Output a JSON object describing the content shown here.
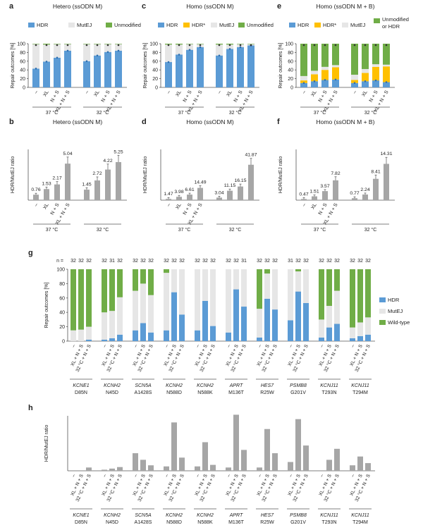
{
  "colors": {
    "hdr": "#5b9bd5",
    "hdrstar": "#ffc000",
    "mutej": "#e6e6e6",
    "unmod": "#70ad47",
    "ratio": "#a6a6a6",
    "text": "#222222",
    "axis": "#555555"
  },
  "legend_labels": {
    "hdr": "HDR",
    "hdrstar": "HDR*",
    "mutej": "MutEJ",
    "unmod": "Unmodified",
    "unmod_or_hdr_1": "Unmodified",
    "unmod_or_hdr_2": "or HDR",
    "wildtype": "Wild-type"
  },
  "conditions": [
    "–",
    "XL",
    "N + S",
    "XL + N + S"
  ],
  "temps": [
    "37 °C",
    "32 °C"
  ],
  "chart_data": [
    {
      "panel": "a",
      "type": "bar",
      "stacked": true,
      "title": "Hetero (ssODN M)",
      "ylabel": "Repair outcomes [%]",
      "ylim": [
        0,
        100
      ],
      "yticks": [
        0,
        20,
        40,
        60,
        80,
        100
      ],
      "series": [
        {
          "name": "HDR",
          "values": [
            43,
            59,
            68,
            84,
            60,
            73,
            81,
            84
          ]
        },
        {
          "name": "MutEJ",
          "values": [
            56,
            39,
            31,
            15,
            39,
            26,
            18,
            15
          ]
        },
        {
          "name": "Unmodified",
          "values": [
            1,
            2,
            1,
            1,
            1,
            1,
            1,
            1
          ]
        }
      ]
    },
    {
      "panel": "c",
      "type": "bar",
      "stacked": true,
      "title": "Homo (ssODN M)",
      "ylabel": "Repair outcomes [%]",
      "ylim": [
        0,
        100
      ],
      "yticks": [
        0,
        20,
        40,
        60,
        80,
        100
      ],
      "series": [
        {
          "name": "HDR",
          "values": [
            58,
            75,
            86,
            92,
            73,
            88,
            92,
            96
          ]
        },
        {
          "name": "HDR*",
          "values": [
            0,
            0,
            0,
            0,
            0,
            0,
            0,
            0
          ]
        },
        {
          "name": "MutEJ",
          "values": [
            40,
            23,
            13,
            7,
            25,
            10,
            7,
            3
          ]
        },
        {
          "name": "Unmodified",
          "values": [
            2,
            2,
            1,
            1,
            2,
            2,
            1,
            1
          ]
        }
      ]
    },
    {
      "panel": "e",
      "type": "bar",
      "stacked": true,
      "title": "Homo (ssODN M + B)",
      "ylabel": "Repair outcomes [%]",
      "ylim": [
        0,
        100
      ],
      "yticks": [
        0,
        20,
        40,
        60,
        80,
        100
      ],
      "series": [
        {
          "name": "HDR",
          "values": [
            10,
            14,
            17,
            18,
            10,
            14,
            16,
            12
          ]
        },
        {
          "name": "HDR*",
          "values": [
            6,
            16,
            23,
            28,
            7,
            19,
            31,
            36
          ]
        },
        {
          "name": "MutEJ",
          "values": [
            10,
            8,
            7,
            5,
            12,
            9,
            6,
            4
          ]
        },
        {
          "name": "Unmodified or HDR",
          "values": [
            74,
            62,
            53,
            49,
            71,
            58,
            47,
            48
          ]
        }
      ]
    },
    {
      "panel": "b",
      "type": "bar",
      "title": "Hetero (ssODN M)",
      "ylabel": "HDR/MutEJ ratio",
      "ylim": [
        0,
        7
      ],
      "values": [
        0.76,
        1.53,
        2.17,
        5.04,
        1.45,
        2.72,
        4.22,
        5.25
      ],
      "labels": [
        "0.76",
        "1.53",
        "2.17",
        "5.04",
        "1.45",
        "2.72",
        "4.22",
        "5.25"
      ]
    },
    {
      "panel": "d",
      "type": "bar",
      "title": "Homo (ssODN M)",
      "ylabel": "HDR/MutEJ ratio",
      "ylim": [
        0,
        60
      ],
      "values": [
        1.47,
        3.98,
        6.61,
        14.49,
        3.04,
        11.15,
        16.15,
        41.87
      ],
      "labels": [
        "1.47",
        "3.98",
        "6.61",
        "14.49",
        "3.04",
        "11.15",
        "16.15",
        "41.87"
      ]
    },
    {
      "panel": "f",
      "type": "bar",
      "title": "Homo (ssODN M + B)",
      "ylabel": "HDR/MutEJ ratio",
      "ylim": [
        0,
        20
      ],
      "values": [
        0.47,
        1.51,
        3.57,
        7.82,
        0.77,
        2.24,
        8.41,
        14.31
      ],
      "labels": [
        "0.47",
        "1.51",
        "3.57",
        "7.82",
        "0.77",
        "2.24",
        "8.41",
        "14.31"
      ]
    },
    {
      "panel": "g",
      "type": "bar",
      "stacked": true,
      "ylabel": "Repair outcomes [%]",
      "ylim": [
        0,
        100
      ],
      "yticks": [
        0,
        20,
        40,
        60,
        80,
        100
      ],
      "n_prefix": "n =",
      "n_values": [
        "32",
        "32",
        "32",
        "32",
        "31",
        "32",
        "32",
        "32",
        "32",
        "32",
        "32",
        "32",
        "32",
        "32",
        "32",
        "32",
        "32",
        "31",
        "32",
        "32",
        "32",
        "31",
        "32",
        "32",
        "32",
        "32",
        "32",
        "32",
        "32",
        "32"
      ],
      "x_labels": [
        "–",
        "XL + N + S",
        "32 °C + N + S"
      ],
      "groups": [
        {
          "gene": "KCNE1",
          "mutation": "D85N",
          "hdr": [
            0,
            0,
            2
          ],
          "mutej": [
            15,
            16,
            18
          ]
        },
        {
          "gene": "KCNH2",
          "mutation": "N45D",
          "hdr": [
            2,
            4,
            9
          ],
          "mutej": [
            38,
            38,
            52
          ]
        },
        {
          "gene": "SCN5A",
          "mutation": "A1428S",
          "hdr": [
            15,
            25,
            12
          ],
          "mutej": [
            55,
            55,
            52
          ]
        },
        {
          "gene": "KCNH2",
          "mutation": "N588D",
          "hdr": [
            15,
            68,
            37
          ],
          "mutej": [
            80,
            32,
            63
          ]
        },
        {
          "gene": "KCNH2",
          "mutation": "N588K",
          "hdr": [
            15,
            56,
            21
          ],
          "mutej": [
            85,
            44,
            79
          ]
        },
        {
          "gene": "APRT",
          "mutation": "M136T",
          "hdr": [
            12,
            72,
            48
          ],
          "mutej": [
            88,
            28,
            52
          ]
        },
        {
          "gene": "HES7",
          "mutation": "R25W",
          "hdr": [
            5,
            59,
            44
          ],
          "mutej": [
            40,
            35,
            56
          ]
        },
        {
          "gene": "PSMB8",
          "mutation": "G201V",
          "hdr": [
            29,
            69,
            53
          ],
          "mutej": [
            71,
            28,
            47
          ]
        },
        {
          "gene": "KCNJ11",
          "mutation": "T293N",
          "hdr": [
            5,
            19,
            24
          ],
          "mutej": [
            25,
            30,
            46
          ]
        },
        {
          "gene": "KCNJ11",
          "mutation": "T294M",
          "hdr": [
            4,
            7,
            9
          ],
          "mutej": [
            15,
            19,
            24
          ]
        }
      ]
    },
    {
      "panel": "h",
      "type": "bar",
      "ylabel": "HDR/MutEJ ratio",
      "ylim": [
        0,
        2.5
      ],
      "values": [
        [
          0,
          0,
          0.15
        ],
        [
          0.05,
          0.1,
          0.17
        ],
        [
          0.8,
          0.5,
          0.25
        ],
        [
          0.2,
          2.2,
          0.6
        ],
        [
          0.2,
          1.3,
          0.27
        ],
        [
          0.15,
          2.55,
          0.95
        ],
        [
          0.15,
          1.9,
          0.8
        ],
        [
          0.4,
          2.35,
          1.15
        ],
        [
          0,
          0.5,
          1.0
        ],
        [
          0.25,
          0.65,
          0.35
        ]
      ]
    }
  ]
}
